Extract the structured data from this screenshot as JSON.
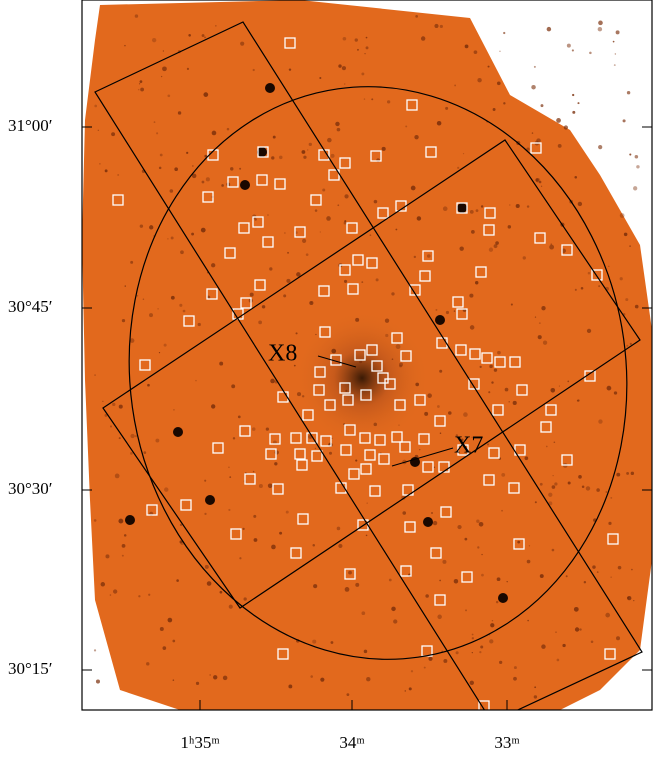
{
  "dec_ticks": [
    "31°00′",
    "30°45′",
    "30°30′",
    "30°15′"
  ],
  "ra_ticks": [
    "1ʰ35ᵐ",
    "34ᵐ",
    "33ᵐ"
  ],
  "sources": [
    "X8",
    "X7"
  ]
}
